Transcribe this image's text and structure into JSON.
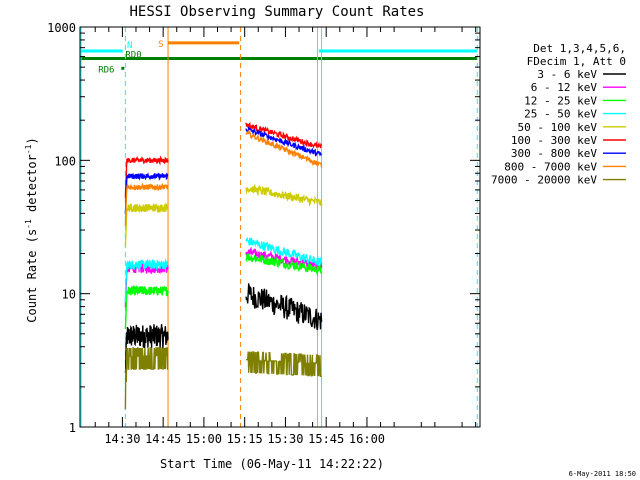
{
  "chart_data": {
    "type": "line",
    "title": "HESSI Observing Summary Count Rates",
    "xlabel": "Start Time (06-May-11 14:22:22)",
    "ylabel_main": "Count Rate (s",
    "ylabel_sup1": "-1",
    "ylabel_mid": " detector",
    "ylabel_sup2": "-1",
    "ylabel_end": ")",
    "yscale": "log",
    "ylim": [
      1,
      1000
    ],
    "xlim_minutes": [
      14.4,
      161.6
    ],
    "x_ticks": [
      {
        "label": "14:30",
        "min": 30
      },
      {
        "label": "14:45",
        "min": 45
      },
      {
        "label": "15:00",
        "min": 60
      },
      {
        "label": "15:15",
        "min": 75
      },
      {
        "label": "15:30",
        "min": 90
      },
      {
        "label": "15:45",
        "min": 105
      },
      {
        "label": "16:00",
        "min": 120
      }
    ],
    "y_ticks": [
      {
        "label": "1",
        "v": 1
      },
      {
        "label": "10",
        "v": 10
      },
      {
        "label": "100",
        "v": 100
      },
      {
        "label": "1000",
        "v": 1000
      }
    ],
    "legend_header": [
      "Det 1,3,4,5,6,",
      "FDecim 1, Att 0"
    ],
    "series": [
      {
        "name": "3 - 6 keV",
        "color": "#000000",
        "v1": 4.8,
        "v2": 10.0,
        "v3": 6.3,
        "noise": 0.09
      },
      {
        "name": "6 - 12 keV",
        "color": "#ff00ff",
        "v1": 15.5,
        "v2": 20.5,
        "v3": 16.0,
        "noise": 0.035
      },
      {
        "name": "12 - 25 keV",
        "color": "#00ff00",
        "v1": 10.5,
        "v2": 19.0,
        "v3": 15.0,
        "noise": 0.035
      },
      {
        "name": "25 - 50 keV",
        "color": "#00ffff",
        "v1": 16.5,
        "v2": 25.0,
        "v3": 17.0,
        "noise": 0.035
      },
      {
        "name": "50 - 100 keV",
        "color": "#cccc00",
        "v1": 44.0,
        "v2": 62.0,
        "v3": 48.0,
        "noise": 0.03
      },
      {
        "name": "100 - 300 keV",
        "color": "#ff0000",
        "v1": 100,
        "v2": 185,
        "v3": 125,
        "noise": 0.02
      },
      {
        "name": "300 - 800 keV",
        "color": "#0000ff",
        "v1": 76,
        "v2": 172,
        "v3": 110,
        "noise": 0.02
      },
      {
        "name": "800 - 7000 keV",
        "color": "#ff8000",
        "v1": 63,
        "v2": 160,
        "v3": 92,
        "noise": 0.02
      },
      {
        "name": "7000 - 20000 keV",
        "color": "#808000",
        "v1": 3.4,
        "v2": 3.2,
        "v3": 3.0,
        "noise": 0.2
      }
    ],
    "intervals": [
      {
        "start": 31.1,
        "end": 46.8
      },
      {
        "start": 75.5,
        "end": 103.3
      }
    ],
    "flags": {
      "night_label": "N",
      "saa_label": "S",
      "rd0_label": "RD0",
      "rd6_label": "RD6",
      "night_value": 660,
      "saa_value": 760,
      "rd0_value": 580,
      "rd6_value": 490
    },
    "footer_date": "6-May-2011 18:50"
  }
}
